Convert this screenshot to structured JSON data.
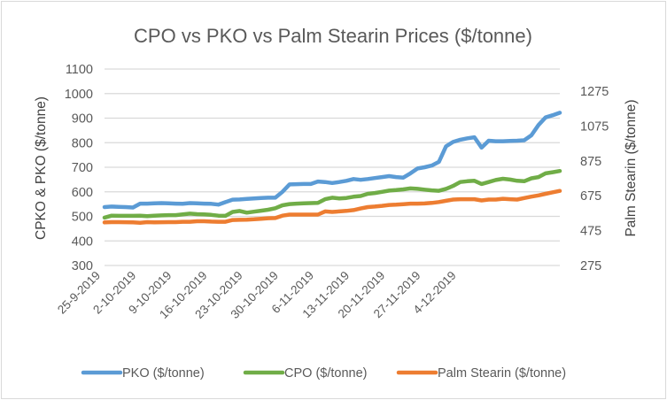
{
  "chart_data": {
    "type": "line",
    "title": "CPO vs PKO vs Palm Stearin Prices ($/tonne)",
    "ylabel": "CPKO & PKO ($/tonne)",
    "y2label": "Palm Stearin ($/tonne)",
    "ylim": [
      300,
      1100
    ],
    "y_ticks": [
      "300",
      "400",
      "500",
      "600",
      "700",
      "800",
      "900",
      "1000",
      "1100"
    ],
    "y2lim": [
      275,
      1402
    ],
    "y2_ticks": [
      "275",
      "475",
      "675",
      "875",
      "1075",
      "1275"
    ],
    "y2_tick_values": [
      275,
      475,
      675,
      875,
      1075,
      1275
    ],
    "grid": true,
    "legend_position": "bottom",
    "x_tick_labels": [
      {
        "label": "25-9-2019",
        "index": 0
      },
      {
        "label": "2-10-2019",
        "index": 5
      },
      {
        "label": "9-10-2019",
        "index": 10
      },
      {
        "label": "16-10-2019",
        "index": 15
      },
      {
        "label": "23-10-2019",
        "index": 20
      },
      {
        "label": "30-10-2019",
        "index": 25
      },
      {
        "label": "6-11-2019",
        "index": 30
      },
      {
        "label": "13-11-2019",
        "index": 35
      },
      {
        "label": "20-11-2019",
        "index": 40
      },
      {
        "label": "27-11-2019",
        "index": 45
      },
      {
        "label": "4-12-2019",
        "index": 50
      }
    ],
    "series": [
      {
        "name": "PKO ($/tonne)",
        "color": "#5b9bd5",
        "axis": "left",
        "values": [
          538,
          540,
          539,
          538,
          536,
          552,
          552,
          553,
          554,
          553,
          552,
          551,
          554,
          553,
          552,
          551,
          548,
          558,
          568,
          569,
          571,
          573,
          575,
          576,
          576,
          600,
          630,
          631,
          632,
          632,
          642,
          640,
          636,
          640,
          645,
          652,
          649,
          652,
          656,
          660,
          664,
          660,
          658,
          675,
          695,
          700,
          707,
          722,
          785,
          803,
          812,
          818,
          822,
          780,
          808,
          806,
          806,
          807,
          808,
          810,
          830,
          872,
          903,
          912,
          922
        ]
      },
      {
        "name": "CPO ($/tonne)",
        "color": "#70ad47",
        "axis": "left",
        "values": [
          495,
          503,
          502,
          502,
          502,
          503,
          501,
          503,
          504,
          505,
          505,
          508,
          511,
          509,
          508,
          506,
          503,
          502,
          518,
          522,
          515,
          519,
          523,
          527,
          533,
          545,
          550,
          552,
          553,
          554,
          555,
          570,
          576,
          573,
          575,
          580,
          583,
          592,
          595,
          600,
          605,
          607,
          610,
          614,
          612,
          609,
          606,
          604,
          612,
          624,
          640,
          643,
          645,
          632,
          640,
          648,
          653,
          650,
          645,
          643,
          655,
          660,
          675,
          680,
          685
        ]
      },
      {
        "name": "Palm Stearin ($/tonne)",
        "color": "#ed7d31",
        "axis": "right",
        "values": [
          522,
          524,
          524,
          523,
          522,
          520,
          524,
          522,
          523,
          524,
          524,
          526,
          526,
          529,
          529,
          527,
          526,
          526,
          536,
          537,
          538,
          540,
          543,
          546,
          547,
          561,
          567,
          567,
          567,
          567,
          567,
          585,
          582,
          585,
          588,
          593,
          602,
          610,
          613,
          617,
          622,
          624,
          627,
          630,
          630,
          631,
          634,
          639,
          646,
          653,
          655,
          655,
          655,
          648,
          653,
          653,
          658,
          655,
          653,
          662,
          670,
          677,
          686,
          695,
          703
        ]
      }
    ]
  }
}
